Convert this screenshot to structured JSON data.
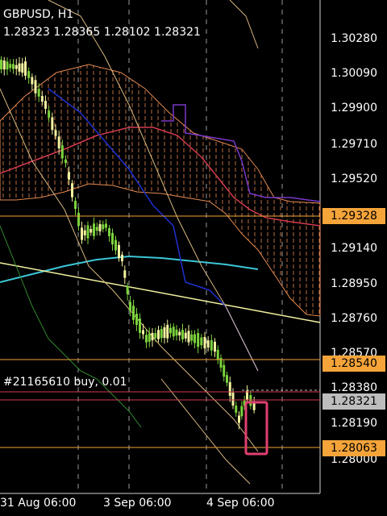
{
  "header": {
    "symbol": "GBPUSD, H1",
    "ohlc": "1.28323 1.28365 1.28102 1.28321"
  },
  "price_axis": [
    "1.30280",
    "1.30090",
    "1.29900",
    "1.29710",
    "1.29520",
    "1.29140",
    "1.28950",
    "1.28760",
    "1.28570",
    "1.28380",
    "1.28190",
    "1.28000"
  ],
  "time_axis": [
    "31 Aug 06:00",
    "3 Sep 06:00",
    "4 Sep 06:00"
  ],
  "levels": {
    "level_a": {
      "label": "1.29328",
      "color": "#f5a43a"
    },
    "level_b": {
      "label": "1.28540",
      "color": "#f5a43a"
    },
    "bid": {
      "label": "1.28321",
      "color": "#bdbdbd"
    },
    "level_c": {
      "label": "1.28063",
      "color": "#f5a43a"
    }
  },
  "order": {
    "label": "#21165610 buy, 0.01"
  },
  "colors": {
    "bull": "#7bd23c",
    "bear": "#f2f2a0",
    "cloud": "#ff9a5c",
    "kijun": "#d23a50",
    "teal": "#3bc6d6",
    "purple": "#7a38c8",
    "blue": "#2030d0",
    "tan": "#d8b880",
    "trend": "#f2f2a0",
    "highlight": "#e04070"
  }
}
